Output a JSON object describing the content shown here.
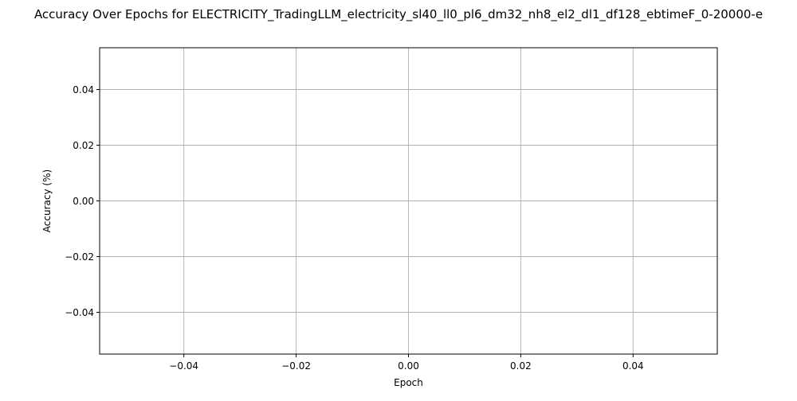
{
  "chart_data": {
    "type": "line",
    "title": "Accuracy Over Epochs for ELECTRICITY_TradingLLM_electricity_sl40_ll0_pl6_dm32_nh8_el2_dl1_df128_ebtimeF_0-20000-e",
    "xlabel": "Epoch",
    "ylabel": "Accuracy (%)",
    "xlim": [
      -0.055,
      0.055
    ],
    "ylim": [
      -0.055,
      0.055
    ],
    "x_ticks": [
      -0.04,
      -0.02,
      0.0,
      0.02,
      0.04
    ],
    "x_tick_labels": [
      "−0.04",
      "−0.02",
      "0.00",
      "0.02",
      "0.04"
    ],
    "y_ticks": [
      -0.04,
      -0.02,
      0.0,
      0.02,
      0.04
    ],
    "y_tick_labels": [
      "−0.04",
      "−0.02",
      "0.00",
      "0.02",
      "0.04"
    ],
    "grid": true,
    "series": [],
    "colors": {
      "grid": "#b0b0b0",
      "axes": "#000000",
      "background": "#ffffff"
    }
  }
}
